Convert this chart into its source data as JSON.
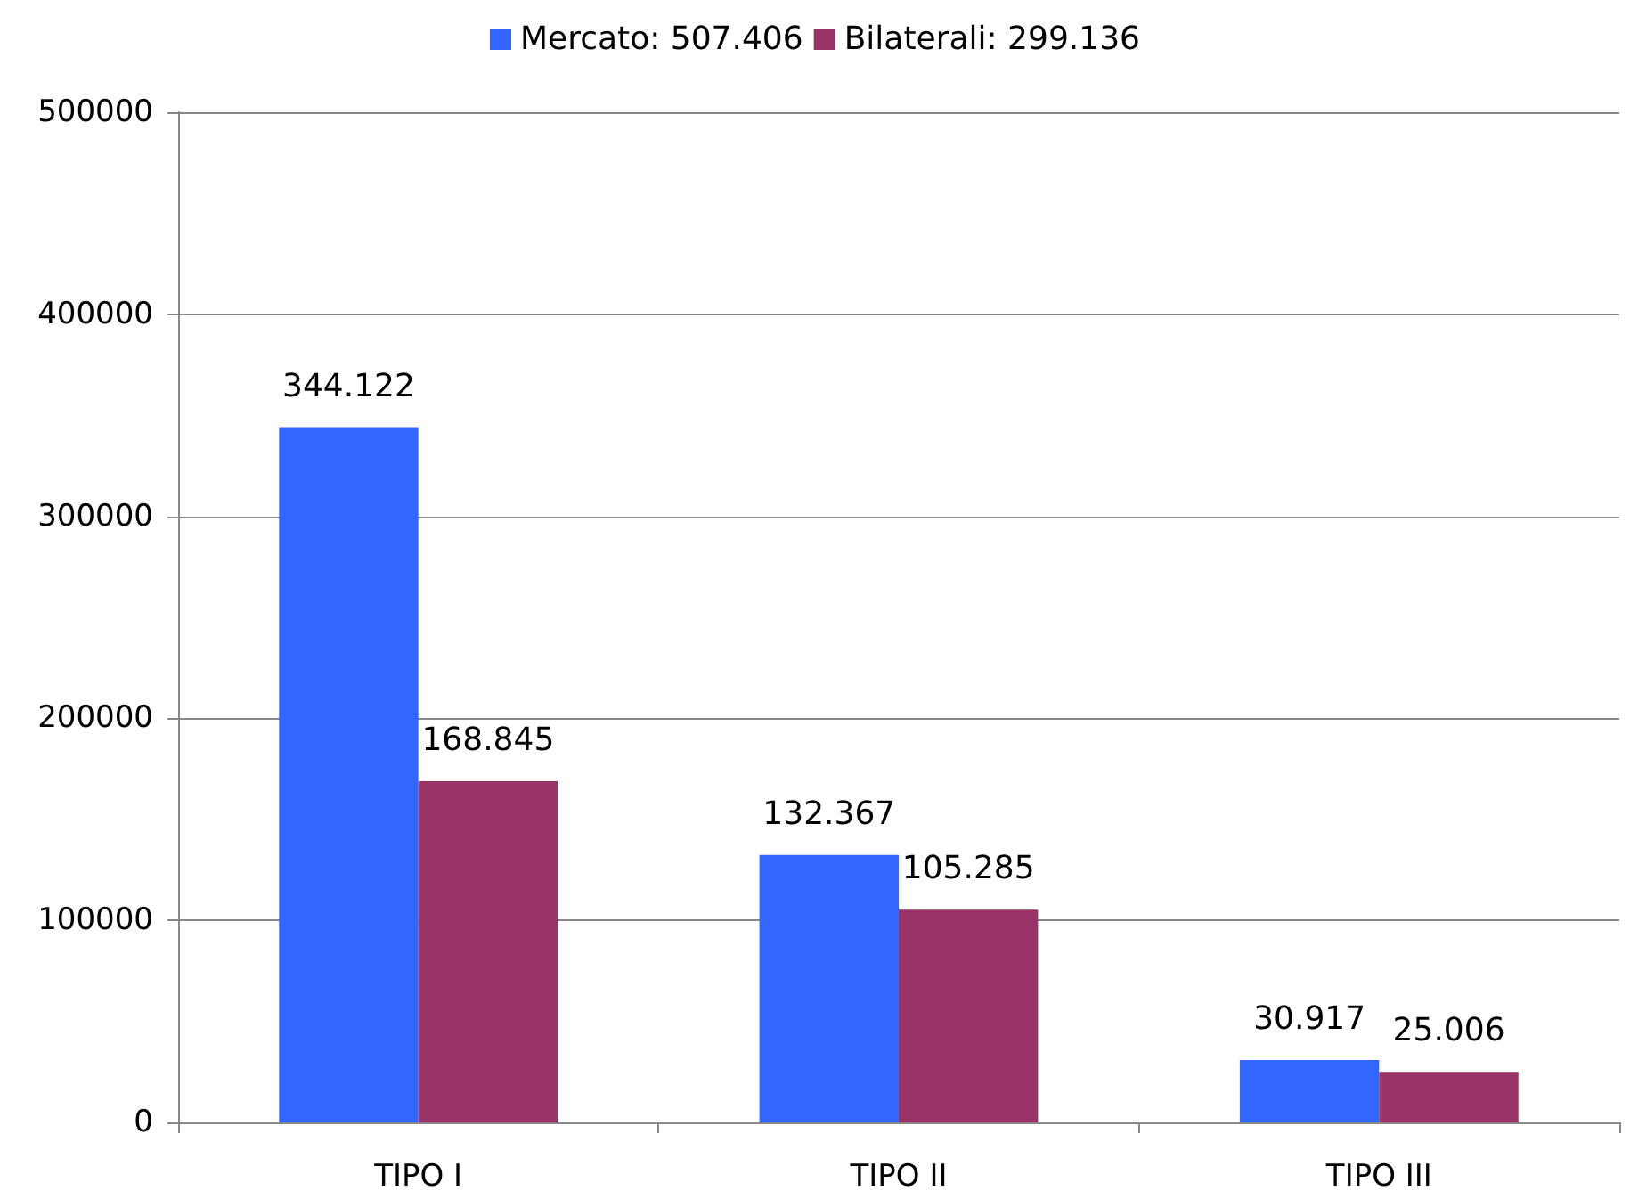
{
  "chart_data": {
    "type": "bar",
    "categories": [
      "TIPO I",
      "TIPO II",
      "TIPO III"
    ],
    "series": [
      {
        "name": "Mercato: 507.406",
        "color": "#3366ff",
        "values": [
          344122,
          132367,
          30917
        ],
        "value_labels": [
          "344.122",
          "132.367",
          "30.917"
        ]
      },
      {
        "name": "Bilaterali: 299.136",
        "color": "#993366",
        "values": [
          168845,
          105285,
          25006
        ],
        "value_labels": [
          "168.845",
          "105.285",
          "25.006"
        ]
      }
    ],
    "ylim": [
      0,
      500000
    ],
    "yticks": [
      0,
      100000,
      200000,
      300000,
      400000,
      500000
    ],
    "grid": "y",
    "legend": "top"
  }
}
